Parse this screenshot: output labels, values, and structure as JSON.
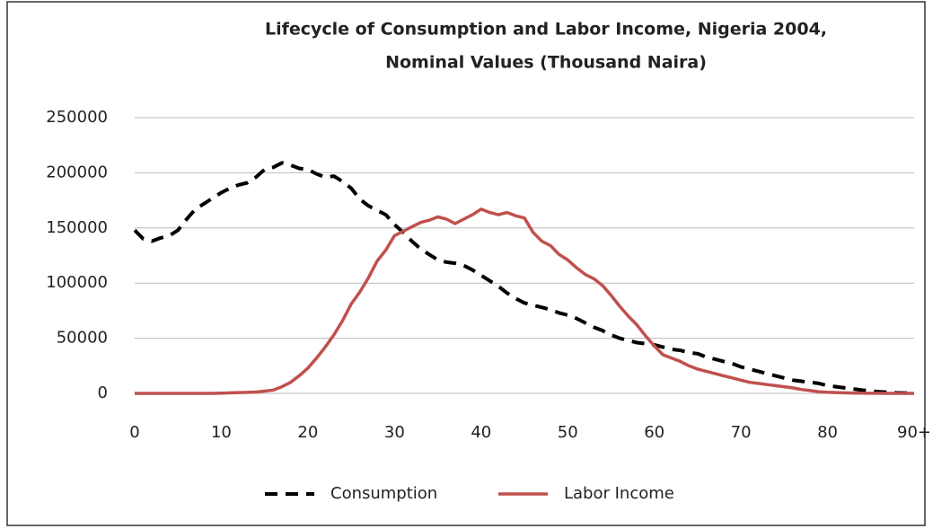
{
  "chart_data": {
    "type": "line",
    "title": "Lifecycle of Consumption and Labor Income, Nigeria 2004,",
    "subtitle": "Nominal Values (Thousand Naira)",
    "x": [
      0,
      1,
      2,
      3,
      4,
      5,
      6,
      7,
      8,
      9,
      10,
      11,
      12,
      13,
      14,
      15,
      16,
      17,
      18,
      19,
      20,
      21,
      22,
      23,
      24,
      25,
      26,
      27,
      28,
      29,
      30,
      31,
      32,
      33,
      34,
      35,
      36,
      37,
      38,
      39,
      40,
      41,
      42,
      43,
      44,
      45,
      46,
      47,
      48,
      49,
      50,
      51,
      52,
      53,
      54,
      55,
      56,
      57,
      58,
      59,
      60,
      61,
      62,
      63,
      64,
      65,
      66,
      67,
      68,
      69,
      70,
      71,
      72,
      73,
      74,
      75,
      76,
      77,
      78,
      79,
      80,
      81,
      82,
      83,
      84,
      85,
      86,
      87,
      88,
      89,
      90
    ],
    "series": [
      {
        "name": "Consumption",
        "color": "#000000",
        "style": "dashed",
        "values": [
          148000,
          140000,
          138000,
          141000,
          143000,
          148000,
          158000,
          167000,
          172000,
          177000,
          182000,
          186000,
          189000,
          191000,
          196000,
          203000,
          205000,
          209000,
          207000,
          204000,
          203000,
          199000,
          196000,
          197000,
          192000,
          186000,
          176000,
          170000,
          166000,
          162000,
          153000,
          146000,
          138000,
          131000,
          126000,
          121000,
          119000,
          118000,
          116000,
          112000,
          107000,
          102000,
          97000,
          91000,
          86000,
          82000,
          80000,
          78000,
          76000,
          73000,
          71000,
          68000,
          64000,
          60000,
          57000,
          53000,
          50000,
          48000,
          46000,
          45000,
          44000,
          42000,
          40000,
          39000,
          37000,
          36000,
          33000,
          31000,
          29000,
          27000,
          24000,
          22000,
          20000,
          18000,
          16000,
          14000,
          12000,
          11000,
          10000,
          9000,
          7000,
          6000,
          5000,
          4000,
          3000,
          2000,
          1500,
          1000,
          500,
          300,
          1000
        ]
      },
      {
        "name": "Labor Income",
        "color": "#c0504d",
        "style": "solid",
        "values": [
          0,
          0,
          0,
          0,
          0,
          0,
          0,
          0,
          0,
          0,
          200,
          500,
          700,
          900,
          1200,
          2000,
          3000,
          6000,
          10000,
          16000,
          23000,
          32000,
          42000,
          53000,
          66000,
          81000,
          92000,
          105000,
          120000,
          130000,
          143000,
          147000,
          151000,
          155000,
          157000,
          160000,
          158000,
          154000,
          158000,
          162000,
          167000,
          164000,
          162000,
          164000,
          161000,
          159000,
          146000,
          138000,
          134000,
          126000,
          121000,
          114000,
          108000,
          104000,
          98000,
          89000,
          79000,
          70000,
          62000,
          52000,
          43000,
          35000,
          32000,
          29000,
          25000,
          22000,
          20000,
          18000,
          16000,
          14000,
          12000,
          10000,
          9000,
          8000,
          7000,
          6000,
          5000,
          3500,
          2500,
          1500,
          1000,
          700,
          500,
          300,
          200,
          100,
          50,
          0,
          0,
          0,
          0
        ]
      }
    ],
    "xlim": [
      0,
      90
    ],
    "xticks": [
      0,
      10,
      20,
      30,
      40,
      50,
      60,
      70,
      80,
      {
        "value": 90,
        "label": "90+"
      }
    ],
    "ylim": [
      0,
      250000
    ],
    "yticks": [
      0,
      50000,
      100000,
      150000,
      200000,
      250000
    ],
    "grid": true,
    "legend": "bottom"
  }
}
